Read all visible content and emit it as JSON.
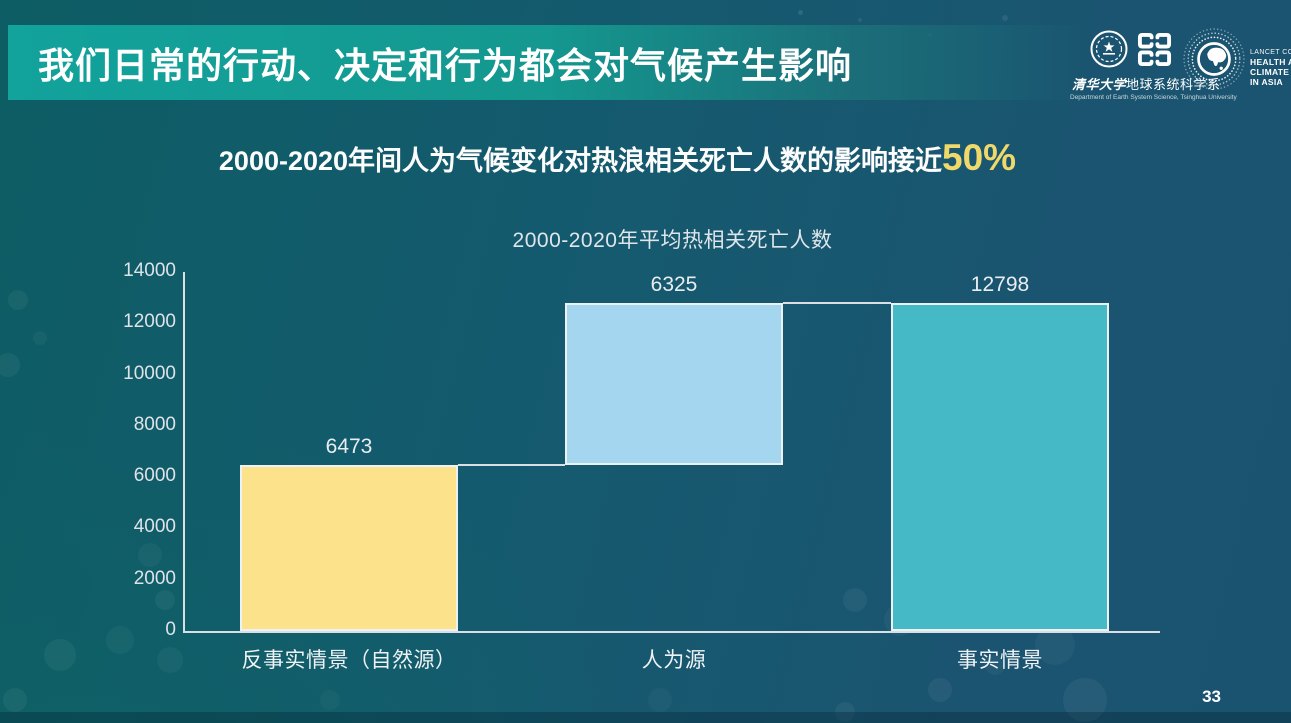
{
  "slide": {
    "title": "我们日常的行动、决定和行为都会对气候产生影响",
    "page_number": "33"
  },
  "subtitle": {
    "text": "2000-2020年间人为气候变化对热浪相关死亡人数的影响接近",
    "highlight": "50%"
  },
  "logos": {
    "tsinghua": {
      "name_cn_script": "清华大学",
      "name_cn_rest": "地球系统科学系",
      "name_en": "Department of Earth System Science, Tsinghua University"
    },
    "lancet": {
      "line1": "LANCET COUNTDOWN",
      "line2": "HEALTH AND",
      "line3": "CLIMATE CHANGE",
      "line4": "IN ASIA"
    }
  },
  "chart_data": {
    "type": "bar",
    "subtype": "waterfall",
    "title": "2000-2020年平均热相关死亡人数",
    "categories": [
      "反事实情景（自然源）",
      "人为源",
      "事实情景"
    ],
    "values": [
      6473,
      6325,
      12798
    ],
    "bars": [
      {
        "label": "反事实情景（自然源）",
        "value": 6473,
        "base": 0,
        "data_label": "6473",
        "color": "#fbe28b"
      },
      {
        "label": "人为源",
        "value": 6325,
        "base": 6473,
        "data_label": "6325",
        "color": "#a5d6ef"
      },
      {
        "label": "事实情景",
        "value": 12798,
        "base": 0,
        "data_label": "12798",
        "color": "#45bac6"
      }
    ],
    "connectors": [
      {
        "at_value": 6473,
        "from_bar": 0,
        "to_bar": 1
      },
      {
        "at_value": 12798,
        "from_bar": 1,
        "to_bar": 2
      }
    ],
    "y_ticks": [
      14000,
      12000,
      10000,
      8000,
      6000,
      4000,
      2000,
      0
    ],
    "ylim": [
      0,
      14000
    ],
    "xlabel": "",
    "ylabel": "",
    "grid": false,
    "legend": false,
    "axis_color": "#d9dfe4"
  },
  "theme": {
    "accent_teal": "#12a39c",
    "highlight_yellow": "#efd96b",
    "background_dark": "#1b5470",
    "background_teal": "#0d5d64",
    "bar_yellow": "#fbe28b",
    "bar_lightblue": "#a5d6ef",
    "bar_teal": "#45bac6"
  }
}
